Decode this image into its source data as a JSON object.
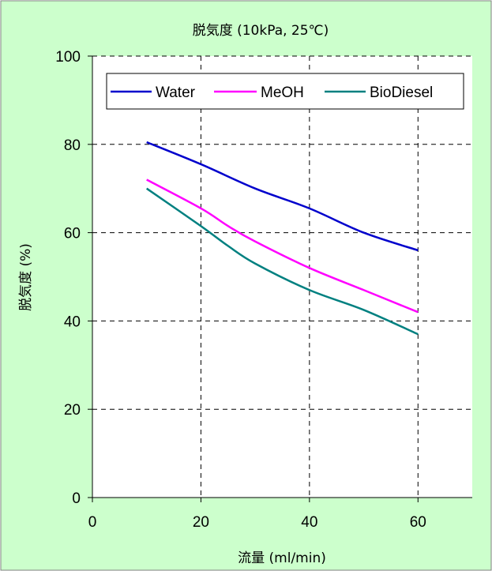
{
  "chart_data": {
    "type": "line",
    "title": "脱気度 (10kPa, 25℃)",
    "xlabel": "流量 (ml/min)",
    "ylabel": "脱気度 (%)",
    "xlim": [
      0,
      70
    ],
    "ylim": [
      0,
      100
    ],
    "xticks": [
      0,
      20,
      40,
      60
    ],
    "yticks": [
      0,
      20,
      40,
      60,
      80,
      100
    ],
    "grid": true,
    "legend_position": "top",
    "background_color": "#ccffcc",
    "plot_background_color": "#ffffff",
    "series": [
      {
        "name": "Water",
        "color": "#0000cc",
        "x": [
          10,
          20,
          30,
          40,
          50,
          60
        ],
        "y": [
          80.5,
          75.5,
          70,
          65.5,
          60,
          56
        ]
      },
      {
        "name": "MeOH",
        "color": "#ff00ff",
        "x": [
          10,
          20,
          25,
          30,
          40,
          50,
          60
        ],
        "y": [
          72,
          65.5,
          61.5,
          58,
          52,
          47,
          42
        ]
      },
      {
        "name": "BioDiesel",
        "color": "#008080",
        "x": [
          10,
          20,
          25,
          30,
          40,
          50,
          60
        ],
        "y": [
          70,
          61.5,
          57,
          53,
          47,
          42.5,
          37
        ]
      }
    ]
  }
}
